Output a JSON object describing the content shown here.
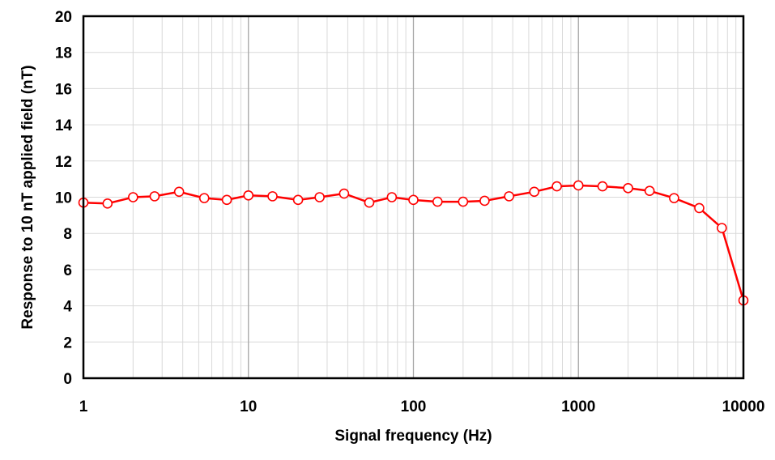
{
  "chart_data": {
    "type": "line",
    "title": "",
    "xlabel": "Signal frequency (Hz)",
    "ylabel": "Response to 10 nT applied field (nT)",
    "x_scale": "log",
    "xlim": [
      1,
      10000
    ],
    "ylim": [
      0,
      20
    ],
    "x_ticks": [
      1,
      10,
      100,
      1000,
      10000
    ],
    "x_tick_labels": [
      "1",
      "10",
      "100",
      "1000",
      "10000"
    ],
    "y_ticks": [
      0,
      2,
      4,
      6,
      8,
      10,
      12,
      14,
      16,
      18,
      20
    ],
    "y_tick_labels": [
      "0",
      "2",
      "4",
      "6",
      "8",
      "10",
      "12",
      "14",
      "16",
      "18",
      "20"
    ],
    "grid": true,
    "legend": "none",
    "series": [
      {
        "color": "#ff0000",
        "marker": "open-circle",
        "x": [
          1,
          1.4,
          2,
          2.7,
          3.8,
          5.4,
          7.4,
          10,
          14,
          20,
          27,
          38,
          54,
          74,
          100,
          140,
          200,
          270,
          380,
          540,
          740,
          1000,
          1400,
          2000,
          2700,
          3800,
          5400,
          7400,
          10000
        ],
        "y": [
          9.7,
          9.65,
          10.0,
          10.05,
          10.3,
          9.95,
          9.85,
          10.1,
          10.05,
          9.85,
          10.0,
          10.2,
          9.7,
          10.0,
          9.85,
          9.75,
          9.75,
          9.8,
          10.05,
          10.3,
          10.6,
          10.65,
          10.6,
          10.5,
          10.35,
          9.95,
          9.4,
          8.3,
          4.3
        ]
      }
    ]
  }
}
